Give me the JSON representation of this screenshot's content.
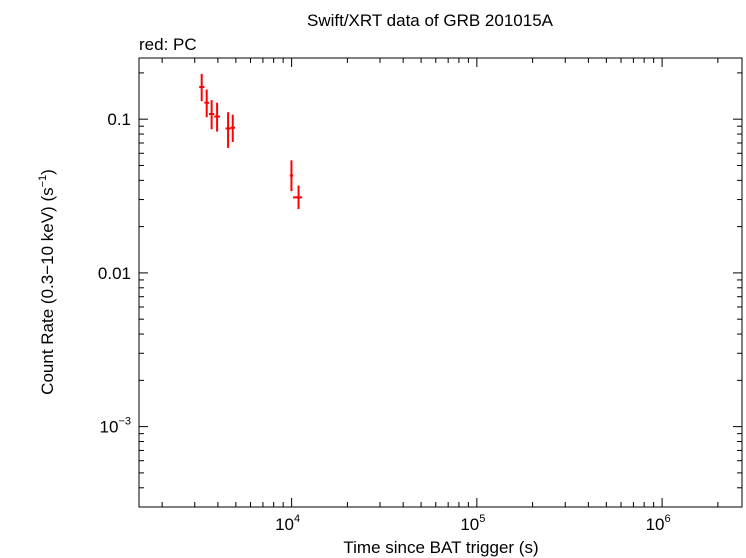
{
  "chart_data": {
    "type": "scatter",
    "title": "Swift/XRT data of GRB 201015A",
    "subtitle": "red: PC",
    "xlabel": "Time since BAT trigger (s)",
    "ylabel_main": "Count Rate (0.3−10 keV) (s",
    "ylabel_sup": "−1",
    "ylabel_close": ")",
    "x_scale": "log",
    "y_scale": "log",
    "xlim": [
      1500,
      2700000
    ],
    "ylim": [
      0.0003,
      0.25
    ],
    "grid": false,
    "x_ticks": [
      {
        "value": 10000,
        "base": "10",
        "exp": "4"
      },
      {
        "value": 100000,
        "base": "10",
        "exp": "5"
      },
      {
        "value": 1000000,
        "base": "10",
        "exp": "6"
      }
    ],
    "y_ticks": [
      {
        "value": 0.1,
        "label": "0.1"
      },
      {
        "value": 0.01,
        "label": "0.01"
      },
      {
        "value": 0.001,
        "base": "10",
        "exp": "−3"
      }
    ],
    "series": [
      {
        "color": "#ff0000",
        "points": [
          {
            "x": 3270,
            "xlo": 3170,
            "xhi": 3380,
            "y": 0.162,
            "ylo": 0.131,
            "yhi": 0.197
          },
          {
            "x": 3480,
            "xlo": 3380,
            "xhi": 3580,
            "y": 0.128,
            "ylo": 0.103,
            "yhi": 0.156
          },
          {
            "x": 3700,
            "xlo": 3580,
            "xhi": 3820,
            "y": 0.108,
            "ylo": 0.086,
            "yhi": 0.133
          },
          {
            "x": 3960,
            "xlo": 3820,
            "xhi": 4110,
            "y": 0.104,
            "ylo": 0.083,
            "yhi": 0.128
          },
          {
            "x": 4540,
            "xlo": 4400,
            "xhi": 4680,
            "y": 0.087,
            "ylo": 0.065,
            "yhi": 0.111
          },
          {
            "x": 4810,
            "xlo": 4680,
            "xhi": 4950,
            "y": 0.088,
            "ylo": 0.071,
            "yhi": 0.107
          },
          {
            "x": 9980,
            "xlo": 9780,
            "xhi": 10180,
            "y": 0.043,
            "ylo": 0.034,
            "yhi": 0.054
          },
          {
            "x": 10900,
            "xlo": 10180,
            "xhi": 11400,
            "y": 0.031,
            "ylo": 0.026,
            "yhi": 0.037
          }
        ]
      }
    ]
  }
}
